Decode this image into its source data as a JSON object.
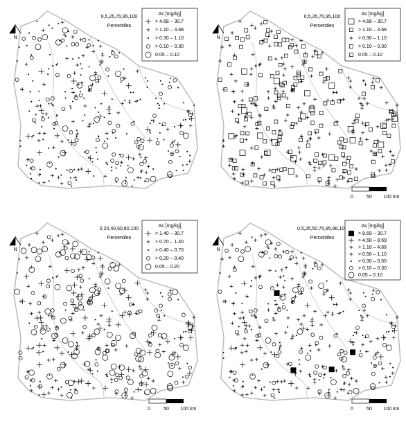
{
  "north": "N",
  "scale": {
    "labels": [
      "0",
      "50",
      "100 km"
    ]
  },
  "panels": [
    {
      "percentiles": "0,5,25,75,95,100",
      "percentiles_title": "Percentiles",
      "legend_title": "As [mg/kg]",
      "legend": [
        "> 4.68 – 30.7",
        "> 1.10 – 4.68",
        "> 0.30 – 1.10",
        "> 0.10 – 0.30",
        "0.05 – 0.10"
      ]
    },
    {
      "percentiles": "0,5,25,75,95,100",
      "percentiles_title": "Percentiles",
      "legend_title": "As [mg/kg]",
      "legend": [
        "> 4.68 – 30.7",
        "> 1.10 – 4.68",
        "> 0.30 – 1.10",
        "> 0.10 – 0.30",
        "0.05 – 0.10"
      ]
    },
    {
      "percentiles": "0,20,40,60,80,100",
      "percentiles_title": "Percentiles",
      "legend_title": "As [mg/kg]",
      "legend": [
        "> 1.40 – 30.7",
        "> 0.70 – 1.40",
        "> 0.40 – 0.70",
        "> 0.20 – 0.40",
        "0.05 – 0.20"
      ]
    },
    {
      "percentiles": "0,5,25,50,75,95,98,100",
      "percentiles_title": "Percentiles",
      "legend_title": "As [mg/kg]",
      "legend": [
        "> 8.69 – 30.7",
        "> 4.68 – 8.69",
        "> 1.10 – 4.68",
        "> 0.50 – 1.10",
        "> 0.30 – 0.50",
        "> 0.10 – 0.30",
        "0.05 – 0.10"
      ]
    }
  ]
}
